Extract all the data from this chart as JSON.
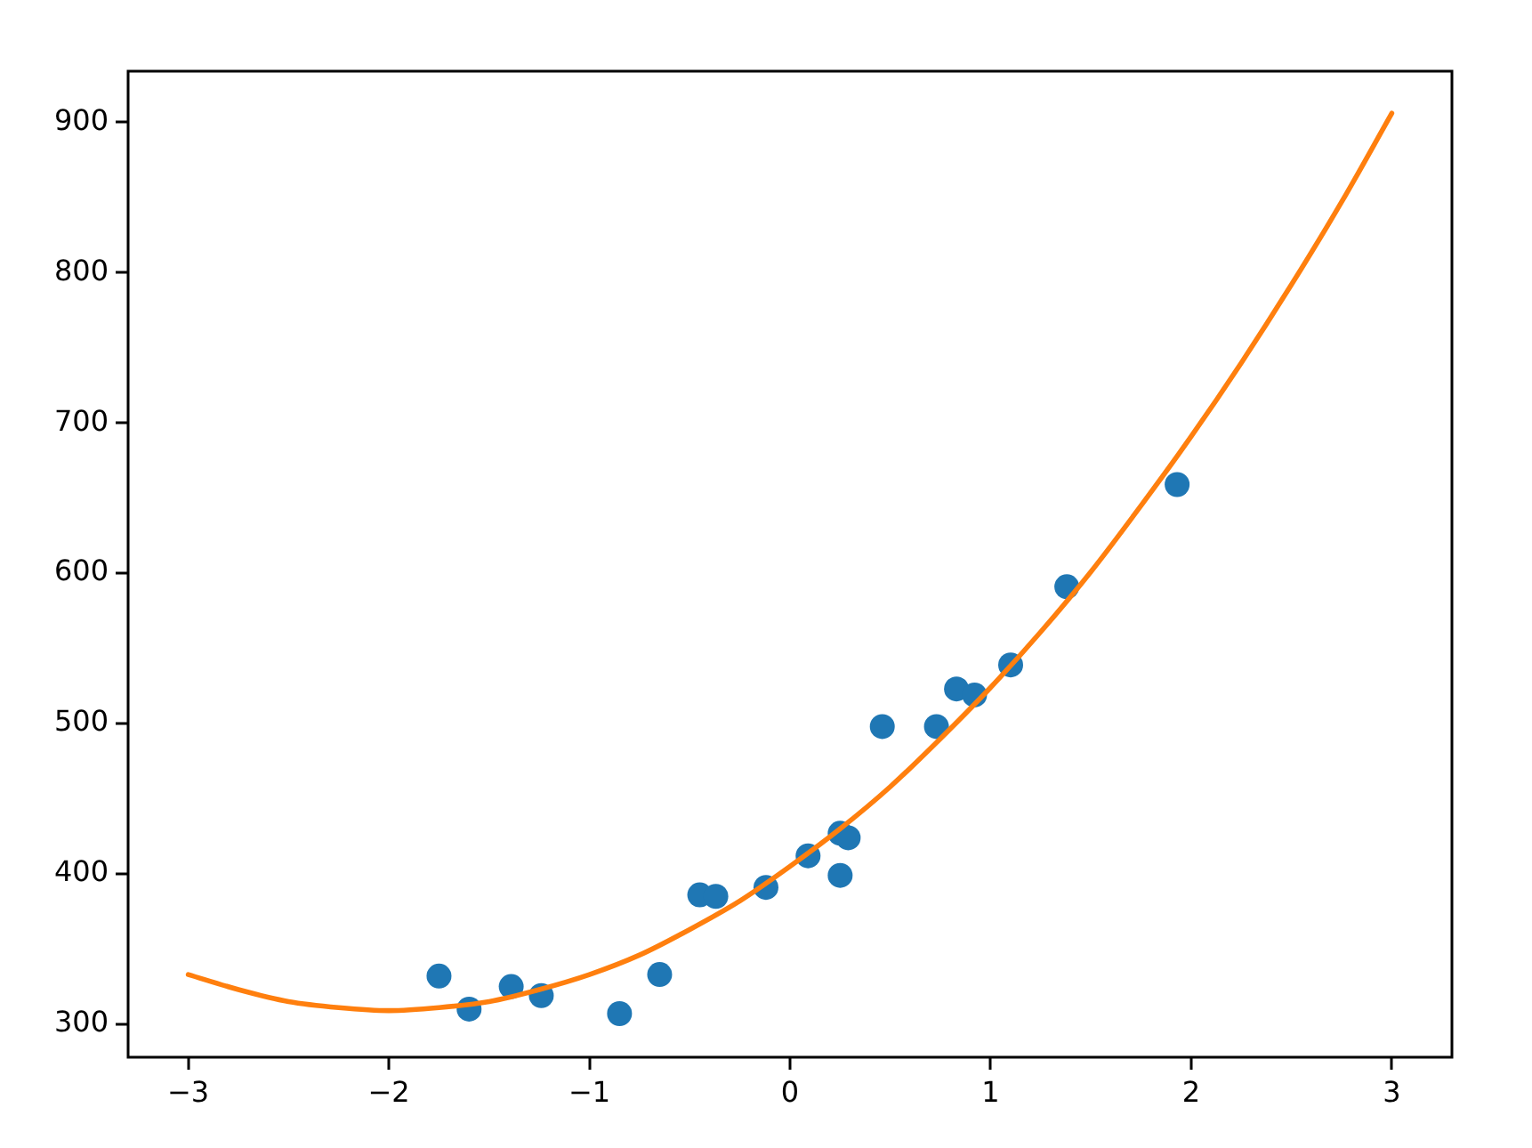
{
  "chart_data": {
    "type": "scatter",
    "xlim": [
      -3.3,
      3.3
    ],
    "ylim": [
      278,
      934
    ],
    "xticks": [
      {
        "value": -3,
        "label": "−3"
      },
      {
        "value": -2,
        "label": "−2"
      },
      {
        "value": -1,
        "label": "−1"
      },
      0,
      1,
      2,
      3
    ],
    "yticks": [
      300,
      400,
      500,
      600,
      700,
      800,
      900
    ],
    "grid": false,
    "legend": false,
    "series": [
      {
        "color": "#1f77b4",
        "marker": "circle",
        "x": [
          -1.75,
          -1.6,
          -1.39,
          -1.24,
          -0.85,
          -0.65,
          -0.45,
          -0.37,
          -0.12,
          0.09,
          0.25,
          0.29,
          0.25,
          0.46,
          0.73,
          0.83,
          0.92,
          1.1,
          1.38,
          1.93
        ],
        "values": [
          332,
          310,
          325,
          319,
          307,
          333,
          386,
          385,
          391,
          412,
          427,
          424,
          399,
          498,
          498,
          523,
          519,
          539,
          591,
          659
        ]
      },
      {
        "type": "line",
        "color": "#ff7f0e",
        "marker": "none",
        "line_style": "solid",
        "x": [
          -3,
          -2.75,
          -2.5,
          -2.25,
          -2,
          -1.75,
          -1.5,
          -1.25,
          -1,
          -0.75,
          -0.5,
          -0.25,
          0,
          0.25,
          0.5,
          0.75,
          1,
          1.25,
          1.5,
          1.75,
          2,
          2.25,
          2.5,
          2.75,
          3
        ],
        "values": [
          333,
          323,
          315,
          311,
          309,
          311,
          315,
          323,
          333,
          346,
          363,
          382,
          405,
          430,
          458,
          490,
          524,
          561,
          601,
          645,
          691,
          740,
          792,
          847,
          906
        ]
      }
    ]
  }
}
